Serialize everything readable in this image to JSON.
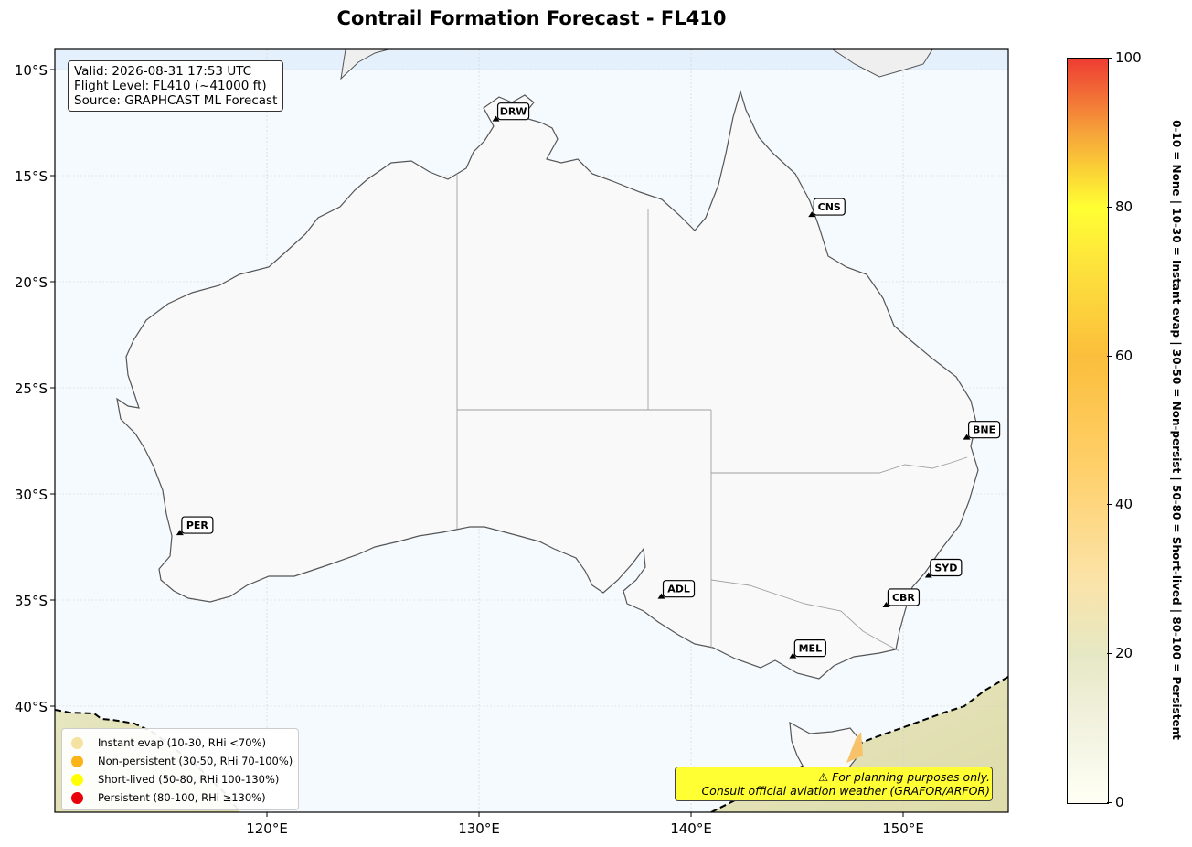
{
  "title": "Contrail Formation Forecast - FL410",
  "info": {
    "valid": "Valid: 2026-08-31 17:53 UTC",
    "flight_level": "Flight Level: FL410 (~41000 ft)",
    "source": "Source: GRAPHCAST ML Forecast"
  },
  "axes": {
    "lat_ticks": [
      "10°S",
      "15°S",
      "20°S",
      "25°S",
      "30°S",
      "35°S",
      "40°S"
    ],
    "lon_ticks": [
      "120°E",
      "130°E",
      "140°E",
      "150°E"
    ],
    "lon_range": [
      110,
      155
    ],
    "lat_range": [
      -9.1,
      -45
    ]
  },
  "airports": [
    {
      "code": "DRW",
      "lon": 130.8,
      "lat": -12.4
    },
    {
      "code": "CNS",
      "lon": 145.7,
      "lat": -16.9
    },
    {
      "code": "BNE",
      "lon": 153.0,
      "lat": -27.4
    },
    {
      "code": "PER",
      "lon": 115.9,
      "lat": -31.9
    },
    {
      "code": "ADL",
      "lon": 138.6,
      "lat": -34.9
    },
    {
      "code": "SYD",
      "lon": 151.2,
      "lat": -33.9
    },
    {
      "code": "CBR",
      "lon": 149.2,
      "lat": -35.3
    },
    {
      "code": "MEL",
      "lon": 144.8,
      "lat": -37.7
    }
  ],
  "legend": [
    {
      "label": "Instant evap (10-30, RHi <70%)",
      "color": "#f5e1a0"
    },
    {
      "label": "Non-persistent (30-50, RHi 70-100%)",
      "color": "#fbb315"
    },
    {
      "label": "Short-lived (50-80, RHi 100-130%)",
      "color": "#ffff00"
    },
    {
      "label": "Persistent (80-100, RHi ≥130%)",
      "color": "#e8000b"
    }
  ],
  "disclaimer": {
    "line1": "⚠ For planning purposes only.",
    "line2": "Consult official aviation weather (GRAFOR/ARFOR)"
  },
  "colorbar": {
    "ticks": [
      "0",
      "20",
      "40",
      "60",
      "80",
      "100"
    ],
    "range": [
      0,
      100
    ],
    "title": "0-10 = None  |  10-30 = Instant evap  |  30-50 = Non-persist  |  50-80 = Short-lived  |  80-100 = Persistent"
  },
  "colors": {
    "ocean": "#f5faff",
    "land": "#f9f9f9",
    "coast": "#555555",
    "low_risk_fill": "#e5e3b8"
  }
}
